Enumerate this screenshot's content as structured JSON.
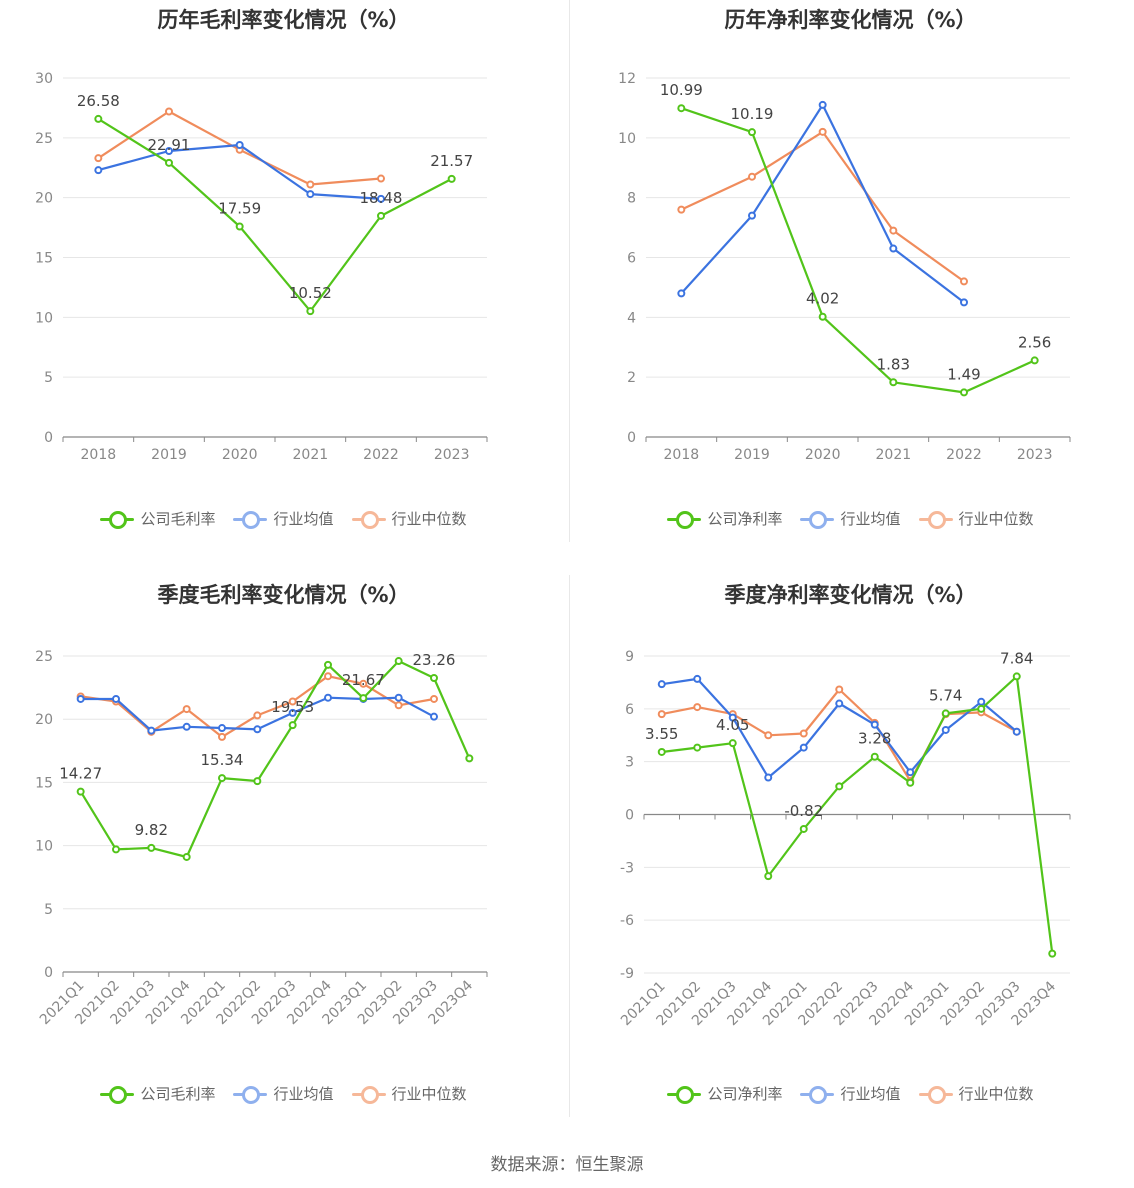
{
  "colors": {
    "company": "#52c41a",
    "avg": "#3b73e0",
    "median": "#f08c5c"
  },
  "legend_names": {
    "avg": "行业均值",
    "median": "行业中位数"
  },
  "source": "数据来源：恒生聚源",
  "chart_data": [
    {
      "type": "line",
      "title": "历年毛利率变化情况（%）",
      "categories": [
        "2018",
        "2019",
        "2020",
        "2021",
        "2022",
        "2023"
      ],
      "ylim": [
        0,
        30
      ],
      "yticks": [
        0,
        5,
        10,
        15,
        20,
        25,
        30
      ],
      "grid": true,
      "legend_position": "bottom",
      "series": [
        {
          "name": "公司毛利率",
          "key": "company",
          "values": [
            26.58,
            22.91,
            17.59,
            10.52,
            18.48,
            21.57
          ],
          "labels": [
            26.58,
            22.91,
            17.59,
            10.52,
            18.48,
            21.57
          ]
        },
        {
          "name": "行业均值",
          "key": "avg",
          "values": [
            22.3,
            23.9,
            24.4,
            20.3,
            19.9,
            null
          ]
        },
        {
          "name": "行业中位数",
          "key": "median",
          "values": [
            23.3,
            27.2,
            24.0,
            21.1,
            21.6,
            null
          ]
        }
      ]
    },
    {
      "type": "line",
      "title": "历年净利率变化情况（%）",
      "categories": [
        "2018",
        "2019",
        "2020",
        "2021",
        "2022",
        "2023"
      ],
      "ylim": [
        0,
        12
      ],
      "yticks": [
        0,
        2,
        4,
        6,
        8,
        10,
        12
      ],
      "grid": true,
      "legend_position": "bottom",
      "series": [
        {
          "name": "公司净利率",
          "key": "company",
          "values": [
            10.99,
            10.19,
            4.02,
            1.83,
            1.49,
            2.56
          ],
          "labels": [
            10.99,
            10.19,
            4.02,
            1.83,
            1.49,
            2.56
          ]
        },
        {
          "name": "行业均值",
          "key": "avg",
          "values": [
            4.8,
            7.4,
            11.1,
            6.3,
            4.5,
            null
          ]
        },
        {
          "name": "行业中位数",
          "key": "median",
          "values": [
            7.6,
            8.7,
            10.2,
            6.9,
            5.2,
            null
          ]
        }
      ]
    },
    {
      "type": "line",
      "title": "季度毛利率变化情况（%）",
      "categories": [
        "2021Q1",
        "2021Q2",
        "2021Q3",
        "2021Q4",
        "2022Q1",
        "2022Q2",
        "2022Q3",
        "2022Q4",
        "2023Q1",
        "2023Q2",
        "2023Q3",
        "2023Q4"
      ],
      "ylim": [
        0,
        25
      ],
      "yticks": [
        0,
        5,
        10,
        15,
        20,
        25
      ],
      "grid": true,
      "legend_position": "bottom",
      "series": [
        {
          "name": "公司毛利率",
          "key": "company",
          "values": [
            14.27,
            9.7,
            9.82,
            9.1,
            15.34,
            15.1,
            19.53,
            24.3,
            21.67,
            24.6,
            23.26,
            16.9
          ],
          "labels": [
            14.27,
            null,
            9.82,
            null,
            15.34,
            null,
            19.53,
            null,
            21.67,
            null,
            23.26,
            null
          ]
        },
        {
          "name": "行业均值",
          "key": "avg",
          "values": [
            21.6,
            21.6,
            19.1,
            19.4,
            19.3,
            19.2,
            20.5,
            21.7,
            21.6,
            21.7,
            20.2,
            null
          ]
        },
        {
          "name": "行业中位数",
          "key": "median",
          "values": [
            21.8,
            21.4,
            19.0,
            20.8,
            18.6,
            20.3,
            21.4,
            23.4,
            22.8,
            21.1,
            21.6,
            null
          ]
        }
      ]
    },
    {
      "type": "line",
      "title": "季度净利率变化情况（%）",
      "categories": [
        "2021Q1",
        "2021Q2",
        "2021Q3",
        "2021Q4",
        "2022Q1",
        "2022Q2",
        "2022Q3",
        "2022Q4",
        "2023Q1",
        "2023Q2",
        "2023Q3",
        "2023Q4"
      ],
      "ylim": [
        -9,
        9
      ],
      "yticks": [
        -9,
        -6,
        -3,
        0,
        3,
        6,
        9
      ],
      "grid": true,
      "legend_position": "bottom",
      "series": [
        {
          "name": "公司净利率",
          "key": "company",
          "values": [
            3.55,
            3.8,
            4.05,
            -3.5,
            -0.82,
            1.6,
            3.28,
            1.8,
            5.74,
            6.0,
            7.84,
            -7.9
          ],
          "labels": [
            3.55,
            null,
            4.05,
            null,
            -0.82,
            null,
            3.28,
            null,
            5.74,
            null,
            7.84,
            null
          ]
        },
        {
          "name": "行业均值",
          "key": "avg",
          "values": [
            7.4,
            7.7,
            5.5,
            2.1,
            3.8,
            6.3,
            5.1,
            2.4,
            4.8,
            6.4,
            4.7,
            null
          ]
        },
        {
          "name": "行业中位数",
          "key": "median",
          "values": [
            5.7,
            6.1,
            5.7,
            4.5,
            4.6,
            7.1,
            5.2,
            1.9,
            5.7,
            5.8,
            4.7,
            null
          ]
        }
      ]
    }
  ]
}
